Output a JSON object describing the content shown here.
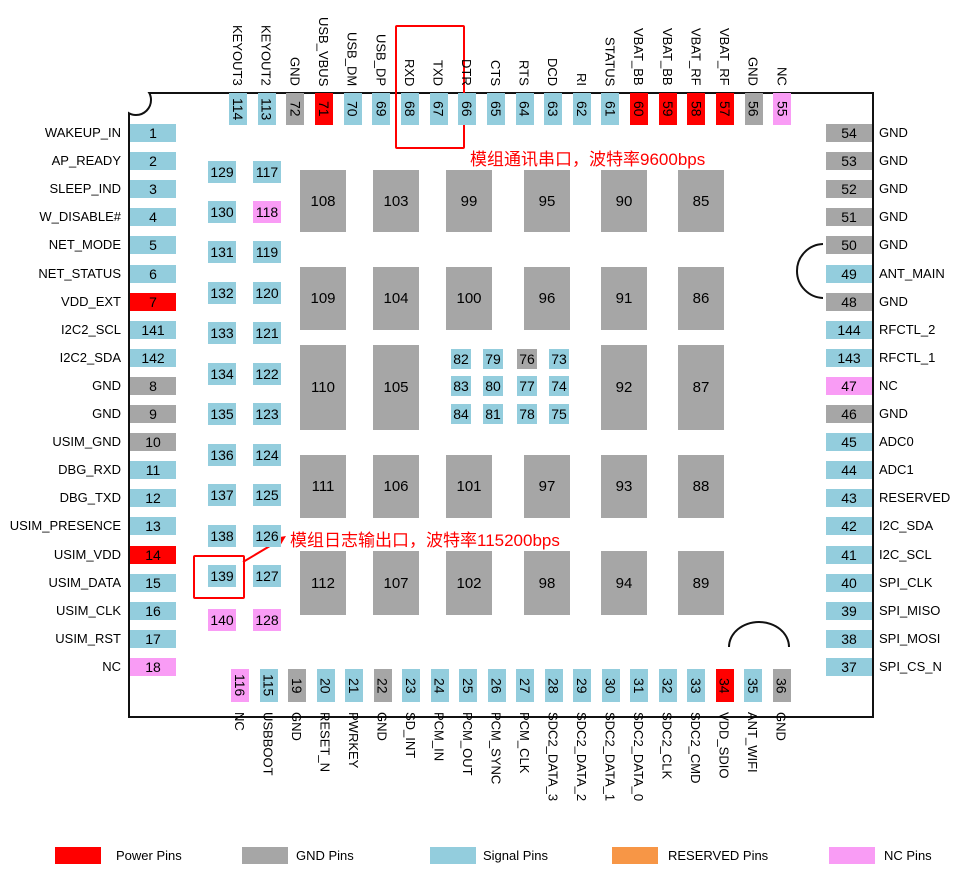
{
  "colors": {
    "power": "#ff0000",
    "gnd": "#a6a6a6",
    "signal": "#93cddd",
    "reserved": "#f79646",
    "nc": "#f99cf5",
    "annotation": "#ff0000"
  },
  "top_pins": [
    {
      "num": "114",
      "label": "KEYOUT3",
      "type": "signal"
    },
    {
      "num": "113",
      "label": "KEYOUT2",
      "type": "signal"
    },
    {
      "num": "72",
      "label": "GND",
      "type": "gnd"
    },
    {
      "num": "71",
      "label": "USB_VBUS",
      "type": "power"
    },
    {
      "num": "70",
      "label": "USB_DM",
      "type": "signal"
    },
    {
      "num": "69",
      "label": "USB_DP",
      "type": "signal"
    },
    {
      "num": "68",
      "label": "RXD",
      "type": "signal"
    },
    {
      "num": "67",
      "label": "TXD",
      "type": "signal"
    },
    {
      "num": "66",
      "label": "DTR",
      "type": "signal"
    },
    {
      "num": "65",
      "label": "CTS",
      "type": "signal"
    },
    {
      "num": "64",
      "label": "RTS",
      "type": "signal"
    },
    {
      "num": "63",
      "label": "DCD",
      "type": "signal"
    },
    {
      "num": "62",
      "label": "RI",
      "type": "signal"
    },
    {
      "num": "61",
      "label": "STATUS",
      "type": "signal"
    },
    {
      "num": "60",
      "label": "VBAT_BB",
      "type": "power"
    },
    {
      "num": "59",
      "label": "VBAT_BB",
      "type": "power"
    },
    {
      "num": "58",
      "label": "VBAT_RF",
      "type": "power"
    },
    {
      "num": "57",
      "label": "VBAT_RF",
      "type": "power"
    },
    {
      "num": "56",
      "label": "GND",
      "type": "gnd"
    },
    {
      "num": "55",
      "label": "NC",
      "type": "nc"
    }
  ],
  "bottom_pins": [
    {
      "num": "116",
      "label": "NC",
      "type": "nc"
    },
    {
      "num": "115",
      "label": "USBBOOT",
      "type": "signal"
    },
    {
      "num": "19",
      "label": "GND",
      "type": "gnd"
    },
    {
      "num": "20",
      "label": "RESET_N",
      "type": "signal"
    },
    {
      "num": "21",
      "label": "PWRKEY",
      "type": "signal"
    },
    {
      "num": "22",
      "label": "GND",
      "type": "gnd"
    },
    {
      "num": "23",
      "label": "SD_INT",
      "type": "signal"
    },
    {
      "num": "24",
      "label": "PCM_IN",
      "type": "signal"
    },
    {
      "num": "25",
      "label": "PCM_OUT",
      "type": "signal"
    },
    {
      "num": "26",
      "label": "PCM_SYNC",
      "type": "signal"
    },
    {
      "num": "27",
      "label": "PCM_CLK",
      "type": "signal"
    },
    {
      "num": "28",
      "label": "SDC2_DATA_3",
      "type": "signal"
    },
    {
      "num": "29",
      "label": "SDC2_DATA_2",
      "type": "signal"
    },
    {
      "num": "30",
      "label": "SDC2_DATA_1",
      "type": "signal"
    },
    {
      "num": "31",
      "label": "SDC2_DATA_0",
      "type": "signal"
    },
    {
      "num": "32",
      "label": "SDC2_CLK",
      "type": "signal"
    },
    {
      "num": "33",
      "label": "SDC2_CMD",
      "type": "signal"
    },
    {
      "num": "34",
      "label": "VDD_SDIO",
      "type": "power"
    },
    {
      "num": "35",
      "label": "ANT_WIFI",
      "type": "signal"
    },
    {
      "num": "36",
      "label": "GND",
      "type": "gnd"
    }
  ],
  "left_pins": [
    {
      "num": "1",
      "label": "WAKEUP_IN",
      "type": "signal"
    },
    {
      "num": "2",
      "label": "AP_READY",
      "type": "signal"
    },
    {
      "num": "3",
      "label": "SLEEP_IND",
      "type": "signal"
    },
    {
      "num": "4",
      "label": "W_DISABLE#",
      "type": "signal"
    },
    {
      "num": "5",
      "label": "NET_MODE",
      "type": "signal"
    },
    {
      "num": "6",
      "label": "NET_STATUS",
      "type": "signal"
    },
    {
      "num": "7",
      "label": "VDD_EXT",
      "type": "power"
    },
    {
      "num": "141",
      "label": "I2C2_SCL",
      "type": "signal"
    },
    {
      "num": "142",
      "label": "I2C2_SDA",
      "type": "signal"
    },
    {
      "num": "8",
      "label": "GND",
      "type": "gnd"
    },
    {
      "num": "9",
      "label": "GND",
      "type": "gnd"
    },
    {
      "num": "10",
      "label": "USIM_GND",
      "type": "gnd"
    },
    {
      "num": "11",
      "label": "DBG_RXD",
      "type": "signal"
    },
    {
      "num": "12",
      "label": "DBG_TXD",
      "type": "signal"
    },
    {
      "num": "13",
      "label": "USIM_PRESENCE",
      "type": "signal"
    },
    {
      "num": "14",
      "label": "USIM_VDD",
      "type": "power"
    },
    {
      "num": "15",
      "label": "USIM_DATA",
      "type": "signal"
    },
    {
      "num": "16",
      "label": "USIM_CLK",
      "type": "signal"
    },
    {
      "num": "17",
      "label": "USIM_RST",
      "type": "signal"
    },
    {
      "num": "18",
      "label": "NC",
      "type": "nc"
    }
  ],
  "right_pins": [
    {
      "num": "54",
      "label": "GND",
      "type": "gnd"
    },
    {
      "num": "53",
      "label": "GND",
      "type": "gnd"
    },
    {
      "num": "52",
      "label": "GND",
      "type": "gnd"
    },
    {
      "num": "51",
      "label": "GND",
      "type": "gnd"
    },
    {
      "num": "50",
      "label": "GND",
      "type": "gnd"
    },
    {
      "num": "49",
      "label": "ANT_MAIN",
      "type": "signal"
    },
    {
      "num": "48",
      "label": "GND",
      "type": "gnd"
    },
    {
      "num": "144",
      "label": "RFCTL_2",
      "type": "signal"
    },
    {
      "num": "143",
      "label": "RFCTL_1",
      "type": "signal"
    },
    {
      "num": "47",
      "label": "NC",
      "type": "nc"
    },
    {
      "num": "46",
      "label": "GND",
      "type": "gnd"
    },
    {
      "num": "45",
      "label": "ADC0",
      "type": "signal"
    },
    {
      "num": "44",
      "label": "ADC1",
      "type": "signal"
    },
    {
      "num": "43",
      "label": "RESERVED",
      "type": "signal"
    },
    {
      "num": "42",
      "label": "I2C_SDA",
      "type": "signal"
    },
    {
      "num": "41",
      "label": "I2C_SCL",
      "type": "signal"
    },
    {
      "num": "40",
      "label": "SPI_CLK",
      "type": "signal"
    },
    {
      "num": "39",
      "label": "SPI_MISO",
      "type": "signal"
    },
    {
      "num": "38",
      "label": "SPI_MOSI",
      "type": "signal"
    },
    {
      "num": "37",
      "label": "SPI_CS_N",
      "type": "signal"
    }
  ],
  "inner_col_a": [
    {
      "num": "129",
      "type": "signal"
    },
    {
      "num": "130",
      "type": "signal"
    },
    {
      "num": "131",
      "type": "signal"
    },
    {
      "num": "132",
      "type": "signal"
    },
    {
      "num": "133",
      "type": "signal"
    },
    {
      "num": "134",
      "type": "signal"
    },
    {
      "num": "135",
      "type": "signal"
    },
    {
      "num": "136",
      "type": "signal"
    },
    {
      "num": "137",
      "type": "signal"
    },
    {
      "num": "138",
      "type": "signal"
    },
    {
      "num": "139",
      "type": "signal"
    },
    {
      "num": "140",
      "type": "nc"
    }
  ],
  "inner_col_b": [
    {
      "num": "117",
      "type": "signal"
    },
    {
      "num": "118",
      "type": "nc"
    },
    {
      "num": "119",
      "type": "signal"
    },
    {
      "num": "120",
      "type": "signal"
    },
    {
      "num": "121",
      "type": "signal"
    },
    {
      "num": "122",
      "type": "signal"
    },
    {
      "num": "123",
      "type": "signal"
    },
    {
      "num": "124",
      "type": "signal"
    },
    {
      "num": "125",
      "type": "signal"
    },
    {
      "num": "126",
      "type": "signal"
    },
    {
      "num": "127",
      "type": "signal"
    },
    {
      "num": "128",
      "type": "nc"
    }
  ],
  "center_pins": [
    [
      {
        "num": "82",
        "type": "signal"
      },
      {
        "num": "79",
        "type": "signal"
      },
      {
        "num": "76",
        "type": "gnd"
      },
      {
        "num": "73",
        "type": "signal"
      }
    ],
    [
      {
        "num": "83",
        "type": "signal"
      },
      {
        "num": "80",
        "type": "signal"
      },
      {
        "num": "77",
        "type": "signal"
      },
      {
        "num": "74",
        "type": "signal"
      }
    ],
    [
      {
        "num": "84",
        "type": "signal"
      },
      {
        "num": "81",
        "type": "signal"
      },
      {
        "num": "78",
        "type": "signal"
      },
      {
        "num": "75",
        "type": "signal"
      }
    ]
  ],
  "gnd_pads": [
    [
      "108",
      "103",
      "99",
      "95",
      "90",
      "85"
    ],
    [
      "109",
      "104",
      "100",
      "96",
      "91",
      "86"
    ],
    [
      "110",
      "105",
      "",
      "",
      "92",
      "87"
    ],
    [
      "111",
      "106",
      "101",
      "97",
      "93",
      "88"
    ],
    [
      "112",
      "107",
      "102",
      "98",
      "94",
      "89"
    ]
  ],
  "annotations": {
    "uart_note": "模组通讯串口，波特率9600bps",
    "debug_note": "模组日志输出口，波特率115200bps"
  },
  "legend": [
    {
      "label": "Power Pins",
      "type": "power"
    },
    {
      "label": "GND Pins",
      "type": "gnd"
    },
    {
      "label": "Signal Pins",
      "type": "signal"
    },
    {
      "label": "RESERVED Pins",
      "type": "reserved"
    },
    {
      "label": "NC Pins",
      "type": "nc"
    }
  ]
}
